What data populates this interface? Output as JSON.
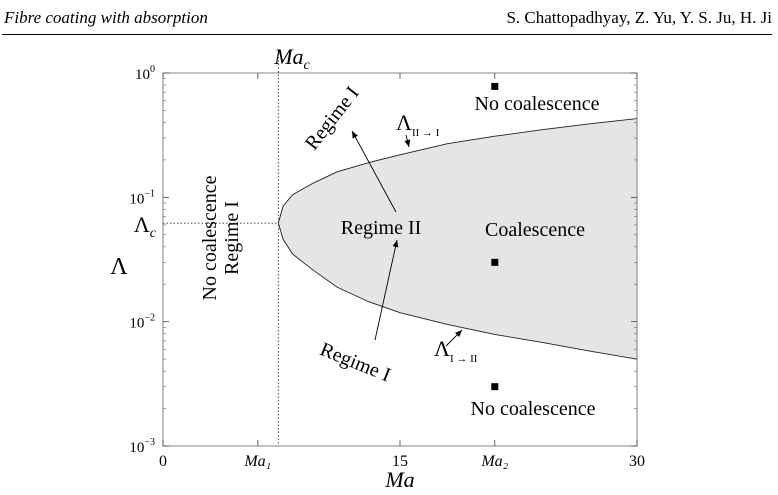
{
  "header": {
    "left": "Fibre coating with absorption",
    "right": "S. Chattopadhyay, Z. Yu, Y. S. Ju, H. Ji"
  },
  "chart_data": {
    "type": "area",
    "xlabel": "Ma",
    "ylabel": "Λ",
    "xlim": [
      0,
      30
    ],
    "ylim": [
      0.001,
      1
    ],
    "y_scale": "log",
    "x_ticks": [
      {
        "value": 0,
        "label": "0"
      },
      {
        "value": 6,
        "label": "Ma₁"
      },
      {
        "value": 15,
        "label": "15"
      },
      {
        "value": 21,
        "label": "Ma₂"
      },
      {
        "value": 30,
        "label": "30"
      }
    ],
    "y_ticks": [
      {
        "value": 0.001,
        "base": "10",
        "exp": "−3"
      },
      {
        "value": 0.01,
        "base": "10",
        "exp": "−2"
      },
      {
        "value": 0.1,
        "base": "10",
        "exp": "−1"
      },
      {
        "value": 1,
        "base": "10",
        "exp": "0"
      }
    ],
    "critical": {
      "ma_c": 7.3,
      "lambda_c": 0.062,
      "ma_c_label": "Ma_c",
      "lambda_c_label": "Λ_c"
    },
    "upper_boundary": {
      "label": "Λ_{II→I}",
      "x": [
        7.3,
        7.6,
        8.2,
        9.5,
        11,
        13,
        15,
        18,
        21,
        24,
        27,
        30
      ],
      "y": [
        0.062,
        0.085,
        0.105,
        0.13,
        0.16,
        0.19,
        0.22,
        0.27,
        0.31,
        0.35,
        0.39,
        0.43
      ]
    },
    "lower_boundary": {
      "label": "Λ_{I→II}",
      "x": [
        7.3,
        7.6,
        8.2,
        9.5,
        11,
        13,
        15,
        18,
        21,
        24,
        27,
        30
      ],
      "y": [
        0.062,
        0.046,
        0.035,
        0.026,
        0.019,
        0.0145,
        0.0118,
        0.0095,
        0.0079,
        0.0068,
        0.0058,
        0.005
      ]
    },
    "points": [
      {
        "x": 21,
        "y": 0.78
      },
      {
        "x": 21,
        "y": 0.03
      },
      {
        "x": 21,
        "y": 0.003
      }
    ],
    "fill_color": "#e5e5e5",
    "annotations": {
      "no_coalescence_left": "No coalescence",
      "regime_I_left": "Regime I",
      "regime_II": "Regime II",
      "coalescence": "Coalescence",
      "no_coalescence_top": "No coalescence",
      "no_coalescence_bottom": "No coalescence",
      "regime_I_top": "Regime I",
      "regime_I_bottom": "Regime I"
    }
  }
}
